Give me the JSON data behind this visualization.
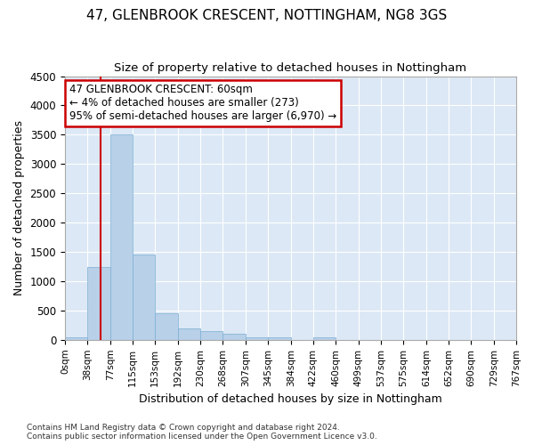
{
  "title": "47, GLENBROOK CRESCENT, NOTTINGHAM, NG8 3GS",
  "subtitle": "Size of property relative to detached houses in Nottingham",
  "xlabel": "Distribution of detached houses by size in Nottingham",
  "ylabel": "Number of detached properties",
  "bar_color": "#b8d0e8",
  "bar_edge_color": "#7aafd4",
  "background_color": "#dce8f5",
  "grid_color": "#ffffff",
  "ylim": [
    0,
    4500
  ],
  "yticks": [
    0,
    500,
    1000,
    1500,
    2000,
    2500,
    3000,
    3500,
    4000,
    4500
  ],
  "bin_edges": [
    0,
    38,
    77,
    115,
    153,
    192,
    230,
    268,
    307,
    345,
    384,
    422,
    460,
    499,
    537,
    575,
    614,
    652,
    690,
    729,
    767
  ],
  "bin_labels": [
    "0sqm",
    "38sqm",
    "77sqm",
    "115sqm",
    "153sqm",
    "192sqm",
    "230sqm",
    "268sqm",
    "307sqm",
    "345sqm",
    "384sqm",
    "422sqm",
    "460sqm",
    "499sqm",
    "537sqm",
    "575sqm",
    "614sqm",
    "652sqm",
    "690sqm",
    "729sqm",
    "767sqm"
  ],
  "bar_heights": [
    50,
    1250,
    3500,
    1450,
    450,
    200,
    150,
    100,
    50,
    50,
    0,
    50,
    0,
    0,
    0,
    0,
    0,
    0,
    0,
    0
  ],
  "property_size": 60,
  "red_line_color": "#cc0000",
  "annotation_line1": "47 GLENBROOK CRESCENT: 60sqm",
  "annotation_line2": "← 4% of detached houses are smaller (273)",
  "annotation_line3": "95% of semi-detached houses are larger (6,970) →",
  "annotation_box_color": "#ffffff",
  "annotation_box_edge_color": "#cc0000",
  "footer_line1": "Contains HM Land Registry data © Crown copyright and database right 2024.",
  "footer_line2": "Contains public sector information licensed under the Open Government Licence v3.0."
}
